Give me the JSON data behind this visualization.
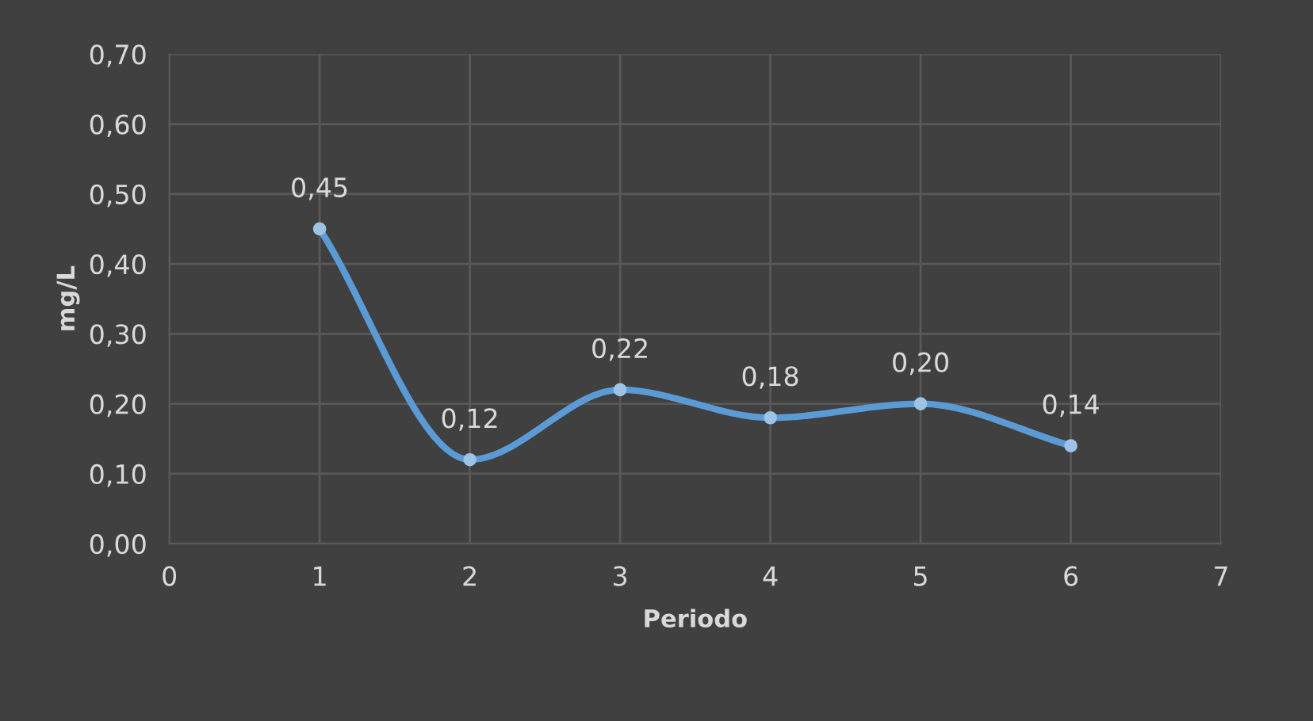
{
  "chart_data": {
    "type": "line",
    "xlabel": "Periodo",
    "ylabel": "mg/L",
    "x": [
      1,
      2,
      3,
      4,
      5,
      6
    ],
    "series": [
      {
        "color": "#5b9bd5",
        "values": [
          0.45,
          0.12,
          0.22,
          0.18,
          0.2,
          0.14
        ],
        "value_labels": [
          "0,45",
          "0,12",
          "0,22",
          "0,18",
          "0,20",
          "0,14"
        ]
      }
    ],
    "xlim": [
      0,
      7
    ],
    "xticks": [
      0,
      1,
      2,
      3,
      4,
      5,
      6,
      7
    ],
    "ylim": [
      0,
      0.7
    ],
    "yticks": [
      {
        "value": 0,
        "label": "0,00"
      },
      {
        "value": 0.1,
        "label": "0,10"
      },
      {
        "value": 0.2,
        "label": "0,20"
      },
      {
        "value": 0.3,
        "label": "0,30"
      },
      {
        "value": 0.4,
        "label": "0,40"
      },
      {
        "value": 0.5,
        "label": "0,50"
      },
      {
        "value": 0.6,
        "label": "0,60"
      },
      {
        "value": 0.7,
        "label": "0,70"
      }
    ],
    "grid": true,
    "marker": "circle",
    "line_style": "solid",
    "legend": false
  }
}
